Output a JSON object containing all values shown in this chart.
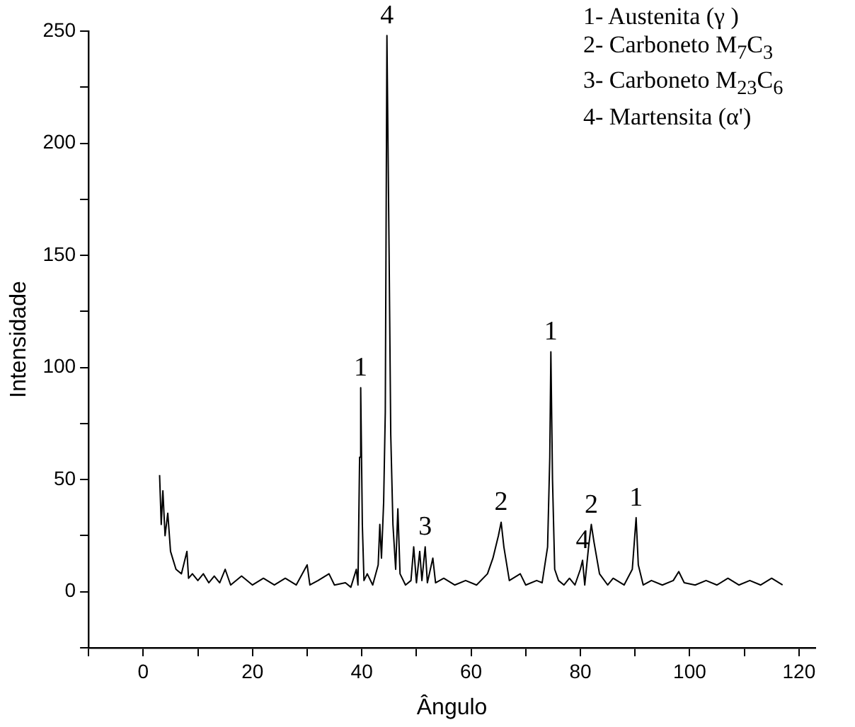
{
  "chart_data": {
    "type": "line",
    "xlabel": "Ângulo",
    "ylabel": "Intensidade",
    "xlim": [
      -10,
      123
    ],
    "ylim": [
      -25,
      250
    ],
    "xticks": [
      {
        "value": -10,
        "label": null
      },
      0,
      {
        "value": 10,
        "label": null
      },
      20,
      {
        "value": 30,
        "label": null
      },
      40,
      {
        "value": 50,
        "label": null
      },
      60,
      {
        "value": 70,
        "label": null
      },
      80,
      {
        "value": 90,
        "label": null
      },
      100,
      {
        "value": 110,
        "label": null
      },
      120
    ],
    "yticks": [
      {
        "value": -25,
        "label": null
      },
      0,
      {
        "value": 25,
        "label": null
      },
      50,
      {
        "value": 75,
        "label": null
      },
      100,
      {
        "value": 125,
        "label": null
      },
      150,
      {
        "value": 175,
        "label": null
      },
      200,
      {
        "value": 225,
        "label": null
      },
      250
    ],
    "marker": "none",
    "legend": false,
    "grid": false,
    "series": [
      {
        "color": "#000000",
        "x": [
          3,
          3.3,
          3.6,
          4,
          4.5,
          5,
          5.5,
          6,
          7,
          8,
          8.3,
          9,
          10,
          11,
          12,
          13,
          14,
          15,
          16,
          18,
          20,
          22,
          24,
          26,
          28,
          30,
          30.5,
          32,
          34,
          35,
          37,
          38,
          39,
          39.3,
          39.6,
          39.8,
          40.1,
          40.4,
          41,
          42,
          43,
          43.3,
          43.6,
          44,
          44.3,
          44.6,
          45,
          45.3,
          45.7,
          46.2,
          46.6,
          47,
          48,
          49,
          49.5,
          50,
          50.6,
          51,
          51.6,
          52,
          53,
          53.5,
          55,
          57,
          59,
          61,
          63,
          64,
          65,
          65.5,
          66,
          67,
          69,
          70,
          72,
          73,
          74,
          74.4,
          74.6,
          74.9,
          75.3,
          76,
          77,
          78,
          79,
          80,
          80.4,
          80.8,
          81.5,
          82,
          82.5,
          83.5,
          85,
          86,
          88,
          89.5,
          90.2,
          90.6,
          91.5,
          93,
          95,
          97,
          98,
          99,
          101,
          103,
          105,
          107,
          109,
          111,
          113,
          115,
          117
        ],
        "values": [
          52,
          30,
          45,
          25,
          35,
          18,
          14,
          10,
          8,
          18,
          6,
          8,
          5,
          8,
          4,
          7,
          4,
          10,
          3,
          7,
          3,
          6,
          3,
          6,
          3,
          12,
          3,
          5,
          8,
          3,
          4,
          2,
          10,
          3,
          60,
          91,
          30,
          5,
          8,
          3,
          12,
          30,
          15,
          40,
          80,
          248,
          150,
          70,
          30,
          10,
          37,
          8,
          3,
          5,
          20,
          4,
          18,
          5,
          20,
          4,
          15,
          4,
          6,
          3,
          5,
          3,
          8,
          15,
          25,
          31,
          20,
          5,
          8,
          3,
          5,
          4,
          20,
          60,
          107,
          50,
          10,
          5,
          3,
          6,
          3,
          10,
          14,
          3,
          20,
          30,
          22,
          8,
          3,
          6,
          3,
          10,
          33,
          12,
          3,
          5,
          3,
          5,
          9,
          4,
          3,
          5,
          3,
          6,
          3,
          5,
          3,
          6,
          3
        ]
      }
    ],
    "annotations": [
      {
        "text": "1",
        "x": 39.8,
        "y": 91
      },
      {
        "text": "4",
        "x": 44.6,
        "y": 248
      },
      {
        "text": "3",
        "x": 51.6,
        "y": 20
      },
      {
        "text": "2",
        "x": 65.5,
        "y": 31
      },
      {
        "text": "1",
        "x": 74.6,
        "y": 107
      },
      {
        "text": "4",
        "x": 80.4,
        "y": 14
      },
      {
        "text": "2",
        "x": 82,
        "y": 30
      },
      {
        "text": "1",
        "x": 90.2,
        "y": 33
      },
      "1- Austenita (γ )",
      "2- Carboneto M$_{7}$C$_{3}$",
      "3- Carboneto M$_{23}$C$_{6}$",
      "4- Martensita (α')"
    ]
  }
}
